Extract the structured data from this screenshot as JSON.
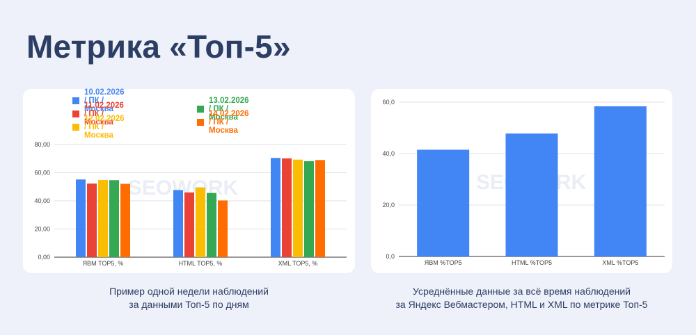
{
  "title": "Метрика «Топ-5»",
  "watermark": "SEOWORK",
  "captions": {
    "left": [
      "Пример одной недели наблюдений",
      "за данными Топ-5 по дням"
    ],
    "right": [
      "Усреднённые данные за всё время наблюдений",
      "за Яндекс Вебмастером, HTML и XML по метрике Топ-5"
    ]
  },
  "chart_data": [
    {
      "type": "bar",
      "categories": [
        "ЯВМ TOP5, %",
        "HTML TOP5, %",
        "XML TOP5, %"
      ],
      "ylim": [
        0,
        80
      ],
      "yticks": [
        "0,00",
        "20,00",
        "40,00",
        "60,00",
        "80,00"
      ],
      "grid": true,
      "legend_position": "top-left",
      "series": [
        {
          "name": "10.02.2026 / ПК / Москва",
          "color": "#4285f4",
          "values": [
            55.2,
            47.7,
            70.5
          ]
        },
        {
          "name": "11.02.2026 / ПК / Москва",
          "color": "#ea4335",
          "values": [
            52.3,
            46.0,
            70.2
          ]
        },
        {
          "name": "12.02.2026 / ПК / Москва",
          "color": "#fbbc04",
          "values": [
            54.8,
            49.6,
            69.3
          ]
        },
        {
          "name": "13.02.2026 / ПК / Москва",
          "color": "#34a853",
          "values": [
            54.7,
            45.6,
            68.2
          ]
        },
        {
          "name": "14.02.2026 / ПК / Москва",
          "color": "#ff6d01",
          "values": [
            52.1,
            40.3,
            69.0
          ]
        }
      ]
    },
    {
      "type": "bar",
      "categories": [
        "ЯВМ %TOP5",
        "HTML %TOP5",
        "XML %TOP5"
      ],
      "ylim": [
        0,
        60
      ],
      "yticks": [
        "0,0",
        "20,0",
        "40,0",
        "60,0"
      ],
      "grid": true,
      "series": [
        {
          "color": "#4285f4",
          "values": [
            41.5,
            47.8,
            58.4
          ]
        }
      ]
    }
  ]
}
